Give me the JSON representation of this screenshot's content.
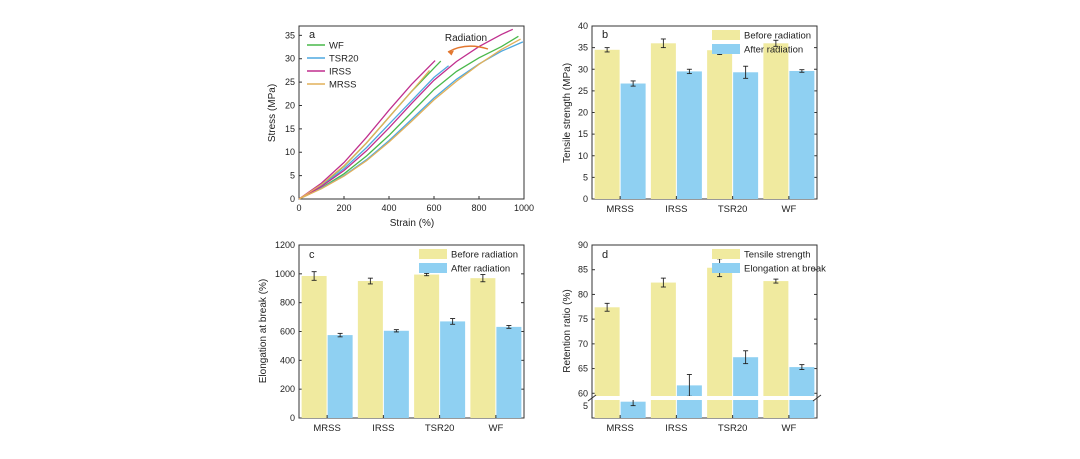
{
  "colors": {
    "before": "#f0ea9f",
    "after": "#8fd0f2",
    "axis": "#333333",
    "WF": "#49b84a",
    "TSR20": "#4fa8e0",
    "IRSS": "#c02f8e",
    "MRSS": "#e2b05a",
    "arrow": "#e2772f"
  },
  "chart_data": [
    {
      "panel": "a",
      "type": "line",
      "xlabel": "Strain (%)",
      "ylabel": "Stress (MPa)",
      "xlim": [
        0,
        1000
      ],
      "ylim": [
        0,
        37
      ],
      "xticks": [
        0,
        200,
        400,
        600,
        800,
        1000
      ],
      "yticks": [
        0,
        5,
        10,
        15,
        20,
        25,
        30,
        35
      ],
      "annotation": "Radiation",
      "series": [
        {
          "name": "WF",
          "color_key": "WF",
          "before": {
            "x": [
              0,
              100,
              200,
              300,
              400,
              500,
              600,
              700,
              800,
              900,
              975
            ],
            "y": [
              0,
              2.4,
              5.4,
              9.2,
              13.6,
              18.5,
              23.4,
              27.3,
              30.2,
              32.6,
              34.8
            ]
          },
          "after": {
            "x": [
              0,
              100,
              200,
              300,
              400,
              500,
              600,
              630
            ],
            "y": [
              0,
              3.0,
              7.0,
              12.0,
              17.5,
              23.0,
              28.0,
              29.5
            ]
          }
        },
        {
          "name": "TSR20",
          "color_key": "TSR20",
          "before": {
            "x": [
              0,
              100,
              200,
              300,
              400,
              500,
              600,
              700,
              800,
              900,
              995
            ],
            "y": [
              0,
              2.3,
              5.0,
              8.4,
              12.5,
              17.0,
              21.6,
              25.6,
              28.9,
              31.6,
              33.6
            ]
          },
          "after": {
            "x": [
              0,
              100,
              200,
              300,
              400,
              500,
              600,
              665
            ],
            "y": [
              0,
              2.8,
              6.5,
              11.0,
              16.0,
              21.0,
              26.0,
              28.5
            ]
          }
        },
        {
          "name": "IRSS",
          "color_key": "IRSS",
          "before": {
            "x": [
              0,
              100,
              200,
              300,
              400,
              500,
              600,
              700,
              800,
              900,
              950
            ],
            "y": [
              0,
              2.7,
              6.1,
              10.3,
              15.2,
              20.4,
              25.4,
              29.4,
              32.6,
              35.2,
              36.3
            ]
          },
          "after": {
            "x": [
              0,
              100,
              200,
              300,
              400,
              500,
              605
            ],
            "y": [
              0,
              3.4,
              7.8,
              13.2,
              19.0,
              24.5,
              29.6
            ]
          }
        },
        {
          "name": "MRSS",
          "color_key": "MRSS",
          "before": {
            "x": [
              0,
              100,
              200,
              300,
              400,
              500,
              600,
              700,
              800,
              900,
              985
            ],
            "y": [
              0,
              2.2,
              4.9,
              8.2,
              12.2,
              16.6,
              21.2,
              25.2,
              28.8,
              32.0,
              34.2
            ]
          },
          "after": {
            "x": [
              0,
              100,
              200,
              300,
              400,
              500,
              580
            ],
            "y": [
              0,
              3.1,
              7.1,
              12.0,
              17.5,
              23.0,
              27.5
            ]
          }
        }
      ]
    },
    {
      "panel": "b",
      "type": "bar",
      "ylabel": "Tensile strength (MPa)",
      "ylim": [
        0,
        40
      ],
      "yticks": [
        0,
        5,
        10,
        15,
        20,
        25,
        30,
        35,
        40
      ],
      "categories": [
        "MRSS",
        "IRSS",
        "TSR20",
        "WF"
      ],
      "legend": [
        "Before radiation",
        "After radiation"
      ],
      "series": [
        {
          "name": "Before radiation",
          "values": [
            34.5,
            36.0,
            34.4,
            36.0
          ],
          "errors": [
            0.5,
            1.0,
            1.0,
            0.7
          ]
        },
        {
          "name": "After radiation",
          "values": [
            26.7,
            29.5,
            29.3,
            29.6
          ],
          "errors": [
            0.6,
            0.5,
            1.4,
            0.3
          ]
        }
      ]
    },
    {
      "panel": "c",
      "type": "bar",
      "ylabel": "Elongation at break (%)",
      "ylim": [
        0,
        1200
      ],
      "yticks": [
        0,
        200,
        400,
        600,
        800,
        1000,
        1200
      ],
      "categories": [
        "MRSS",
        "IRSS",
        "TSR20",
        "WF"
      ],
      "legend": [
        "Before radiation",
        "After radiation"
      ],
      "series": [
        {
          "name": "Before radiation",
          "values": [
            985,
            950,
            995,
            970
          ],
          "errors": [
            30,
            20,
            8,
            25
          ]
        },
        {
          "name": "After radiation",
          "values": [
            575,
            605,
            670,
            632
          ],
          "errors": [
            12,
            8,
            20,
            10
          ]
        }
      ]
    },
    {
      "panel": "d",
      "type": "bar",
      "ylabel": "Retention ratio (%)",
      "ylim": [
        55,
        90
      ],
      "axis_break": true,
      "yticks": [
        60,
        65,
        70,
        75,
        80,
        85,
        90
      ],
      "ytick_labels": [
        "60",
        "65",
        "70",
        "75",
        "80",
        "85",
        "90"
      ],
      "bottom_tick_label": "5",
      "categories": [
        "MRSS",
        "IRSS",
        "TSR20",
        "WF"
      ],
      "legend": [
        "Tensile strength",
        "Elongation at break"
      ],
      "series": [
        {
          "name": "Tensile strength",
          "values": [
            77.4,
            82.4,
            85.4,
            82.7
          ],
          "errors": [
            0.8,
            0.9,
            1.8,
            0.4
          ]
        },
        {
          "name": "Elongation at break",
          "values": [
            58.3,
            61.6,
            67.3,
            65.3
          ],
          "errors": [
            0.8,
            2.2,
            1.3,
            0.5
          ]
        }
      ]
    }
  ]
}
